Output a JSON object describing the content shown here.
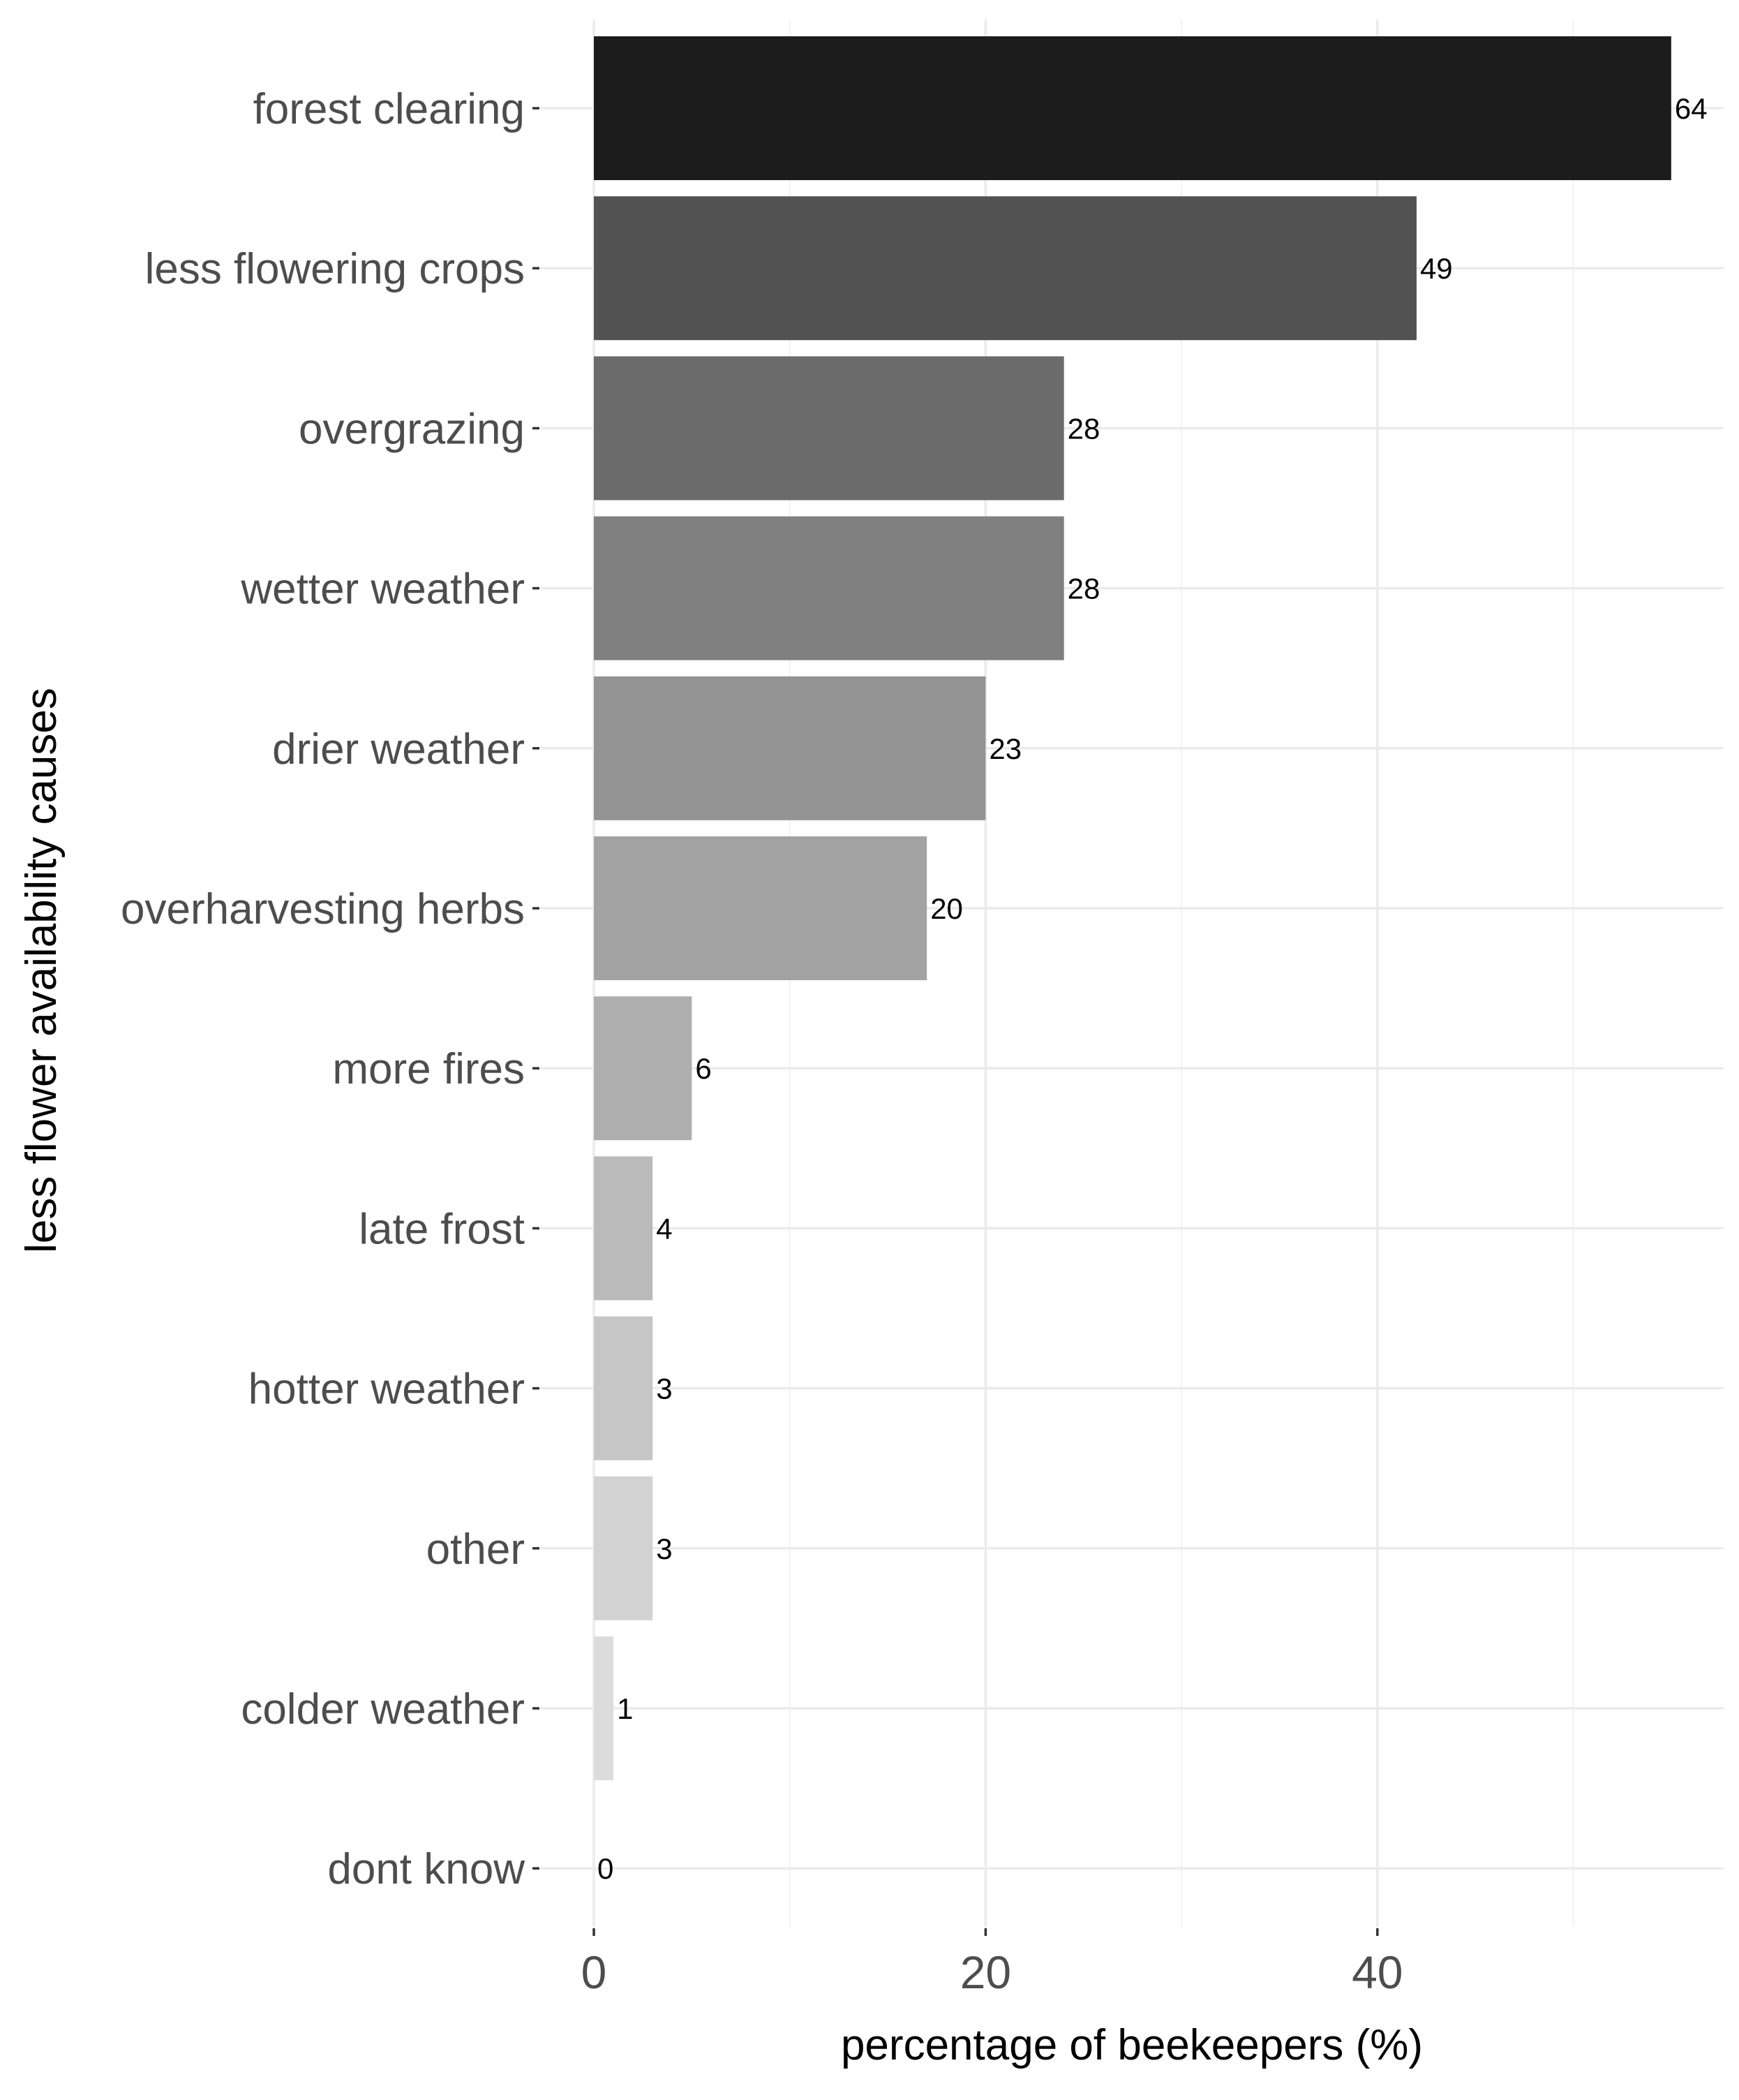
{
  "chart_data": {
    "type": "bar",
    "orientation": "horizontal",
    "xlabel": "percentage of beekeepers (%)",
    "ylabel": "less flower availability causes",
    "xlim": [
      -1.5,
      57.6
    ],
    "xticks": [
      0,
      20,
      40
    ],
    "minor_gridlines": [
      10,
      30,
      50
    ],
    "grid": true,
    "legend": "none",
    "categories": [
      "forest clearing",
      "less flowering crops",
      "overgrazing",
      "wetter weather",
      "drier weather",
      "overharvesting herbs",
      "more fires",
      "late frost",
      "hotter weather",
      "other",
      "colder weather",
      "dont know"
    ],
    "values": [
      55,
      42,
      24,
      24,
      20,
      17,
      5,
      3,
      3,
      3,
      1,
      0
    ],
    "labels": [
      "64",
      "49",
      "28",
      "28",
      "23",
      "20",
      "6",
      "4",
      "3",
      "3",
      "1",
      "0"
    ],
    "colors": [
      "#1c1c1c",
      "#525252",
      "#6b6b6b",
      "#808080",
      "#939393",
      "#a2a2a2",
      "#aeaeae",
      "#bababa",
      "#c6c6c6",
      "#d2d2d2",
      "#dcdcdc",
      "#e8e8e8"
    ]
  }
}
